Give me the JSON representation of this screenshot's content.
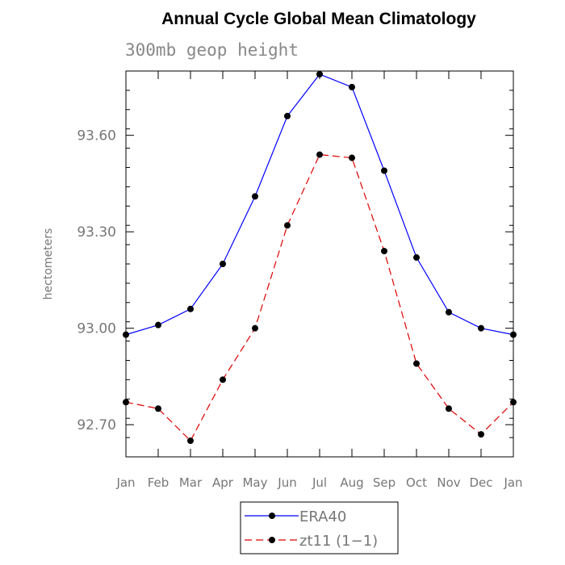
{
  "chart_data": {
    "type": "line",
    "title": "Annual Cycle Global Mean Climatology",
    "subtitle": "300mb geop height",
    "xlabel": "",
    "ylabel": "hectometers",
    "categories": [
      "Jan",
      "Feb",
      "Mar",
      "Apr",
      "May",
      "Jun",
      "Jul",
      "Aug",
      "Sep",
      "Oct",
      "Nov",
      "Dec",
      "Jan"
    ],
    "ylim": [
      92.6,
      93.8
    ],
    "yticks": [
      92.7,
      93.0,
      93.3,
      93.6
    ],
    "ytick_labels": [
      "92.70",
      "93.00",
      "93.30",
      "93.60"
    ],
    "grid": false,
    "legend": {
      "position": "bottom-center"
    },
    "series": [
      {
        "name": "ERA40",
        "color": "#0000ff",
        "dash": "solid",
        "values": [
          92.98,
          93.01,
          93.06,
          93.2,
          93.41,
          93.66,
          93.79,
          93.75,
          93.49,
          93.22,
          93.05,
          93.0,
          92.98
        ]
      },
      {
        "name": "zt11 (1−1)",
        "color": "#dd0000",
        "dash": "dashed",
        "values": [
          92.77,
          92.75,
          92.65,
          92.84,
          93.0,
          93.32,
          93.54,
          93.53,
          93.24,
          92.89,
          92.75,
          92.67,
          92.77
        ]
      }
    ]
  }
}
